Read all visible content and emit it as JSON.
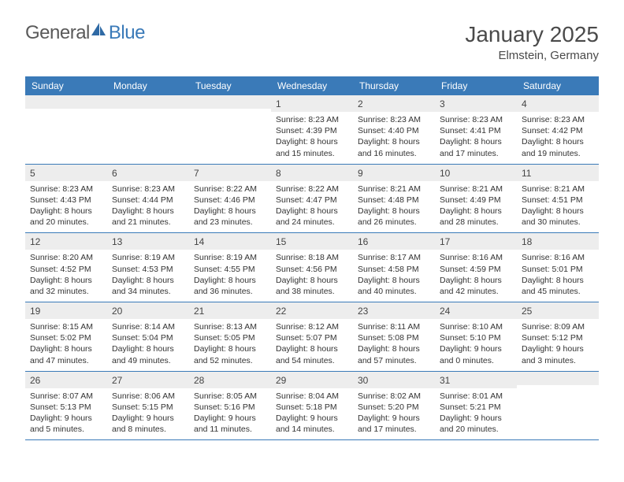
{
  "logo": {
    "word1": "General",
    "word2": "Blue"
  },
  "title": "January 2025",
  "location": "Elmstein, Germany",
  "colors": {
    "header_bg": "#3a7ab8",
    "header_text": "#ffffff",
    "daynum_bg": "#ededed",
    "border": "#3a7ab8",
    "logo_gray": "#5a5a5a",
    "logo_blue": "#3a7ab8"
  },
  "day_headers": [
    "Sunday",
    "Monday",
    "Tuesday",
    "Wednesday",
    "Thursday",
    "Friday",
    "Saturday"
  ],
  "weeks": [
    [
      {
        "n": "",
        "sunrise": "",
        "sunset": "",
        "daylight": ""
      },
      {
        "n": "",
        "sunrise": "",
        "sunset": "",
        "daylight": ""
      },
      {
        "n": "",
        "sunrise": "",
        "sunset": "",
        "daylight": ""
      },
      {
        "n": "1",
        "sunrise": "Sunrise: 8:23 AM",
        "sunset": "Sunset: 4:39 PM",
        "daylight": "Daylight: 8 hours and 15 minutes."
      },
      {
        "n": "2",
        "sunrise": "Sunrise: 8:23 AM",
        "sunset": "Sunset: 4:40 PM",
        "daylight": "Daylight: 8 hours and 16 minutes."
      },
      {
        "n": "3",
        "sunrise": "Sunrise: 8:23 AM",
        "sunset": "Sunset: 4:41 PM",
        "daylight": "Daylight: 8 hours and 17 minutes."
      },
      {
        "n": "4",
        "sunrise": "Sunrise: 8:23 AM",
        "sunset": "Sunset: 4:42 PM",
        "daylight": "Daylight: 8 hours and 19 minutes."
      }
    ],
    [
      {
        "n": "5",
        "sunrise": "Sunrise: 8:23 AM",
        "sunset": "Sunset: 4:43 PM",
        "daylight": "Daylight: 8 hours and 20 minutes."
      },
      {
        "n": "6",
        "sunrise": "Sunrise: 8:23 AM",
        "sunset": "Sunset: 4:44 PM",
        "daylight": "Daylight: 8 hours and 21 minutes."
      },
      {
        "n": "7",
        "sunrise": "Sunrise: 8:22 AM",
        "sunset": "Sunset: 4:46 PM",
        "daylight": "Daylight: 8 hours and 23 minutes."
      },
      {
        "n": "8",
        "sunrise": "Sunrise: 8:22 AM",
        "sunset": "Sunset: 4:47 PM",
        "daylight": "Daylight: 8 hours and 24 minutes."
      },
      {
        "n": "9",
        "sunrise": "Sunrise: 8:21 AM",
        "sunset": "Sunset: 4:48 PM",
        "daylight": "Daylight: 8 hours and 26 minutes."
      },
      {
        "n": "10",
        "sunrise": "Sunrise: 8:21 AM",
        "sunset": "Sunset: 4:49 PM",
        "daylight": "Daylight: 8 hours and 28 minutes."
      },
      {
        "n": "11",
        "sunrise": "Sunrise: 8:21 AM",
        "sunset": "Sunset: 4:51 PM",
        "daylight": "Daylight: 8 hours and 30 minutes."
      }
    ],
    [
      {
        "n": "12",
        "sunrise": "Sunrise: 8:20 AM",
        "sunset": "Sunset: 4:52 PM",
        "daylight": "Daylight: 8 hours and 32 minutes."
      },
      {
        "n": "13",
        "sunrise": "Sunrise: 8:19 AM",
        "sunset": "Sunset: 4:53 PM",
        "daylight": "Daylight: 8 hours and 34 minutes."
      },
      {
        "n": "14",
        "sunrise": "Sunrise: 8:19 AM",
        "sunset": "Sunset: 4:55 PM",
        "daylight": "Daylight: 8 hours and 36 minutes."
      },
      {
        "n": "15",
        "sunrise": "Sunrise: 8:18 AM",
        "sunset": "Sunset: 4:56 PM",
        "daylight": "Daylight: 8 hours and 38 minutes."
      },
      {
        "n": "16",
        "sunrise": "Sunrise: 8:17 AM",
        "sunset": "Sunset: 4:58 PM",
        "daylight": "Daylight: 8 hours and 40 minutes."
      },
      {
        "n": "17",
        "sunrise": "Sunrise: 8:16 AM",
        "sunset": "Sunset: 4:59 PM",
        "daylight": "Daylight: 8 hours and 42 minutes."
      },
      {
        "n": "18",
        "sunrise": "Sunrise: 8:16 AM",
        "sunset": "Sunset: 5:01 PM",
        "daylight": "Daylight: 8 hours and 45 minutes."
      }
    ],
    [
      {
        "n": "19",
        "sunrise": "Sunrise: 8:15 AM",
        "sunset": "Sunset: 5:02 PM",
        "daylight": "Daylight: 8 hours and 47 minutes."
      },
      {
        "n": "20",
        "sunrise": "Sunrise: 8:14 AM",
        "sunset": "Sunset: 5:04 PM",
        "daylight": "Daylight: 8 hours and 49 minutes."
      },
      {
        "n": "21",
        "sunrise": "Sunrise: 8:13 AM",
        "sunset": "Sunset: 5:05 PM",
        "daylight": "Daylight: 8 hours and 52 minutes."
      },
      {
        "n": "22",
        "sunrise": "Sunrise: 8:12 AM",
        "sunset": "Sunset: 5:07 PM",
        "daylight": "Daylight: 8 hours and 54 minutes."
      },
      {
        "n": "23",
        "sunrise": "Sunrise: 8:11 AM",
        "sunset": "Sunset: 5:08 PM",
        "daylight": "Daylight: 8 hours and 57 minutes."
      },
      {
        "n": "24",
        "sunrise": "Sunrise: 8:10 AM",
        "sunset": "Sunset: 5:10 PM",
        "daylight": "Daylight: 9 hours and 0 minutes."
      },
      {
        "n": "25",
        "sunrise": "Sunrise: 8:09 AM",
        "sunset": "Sunset: 5:12 PM",
        "daylight": "Daylight: 9 hours and 3 minutes."
      }
    ],
    [
      {
        "n": "26",
        "sunrise": "Sunrise: 8:07 AM",
        "sunset": "Sunset: 5:13 PM",
        "daylight": "Daylight: 9 hours and 5 minutes."
      },
      {
        "n": "27",
        "sunrise": "Sunrise: 8:06 AM",
        "sunset": "Sunset: 5:15 PM",
        "daylight": "Daylight: 9 hours and 8 minutes."
      },
      {
        "n": "28",
        "sunrise": "Sunrise: 8:05 AM",
        "sunset": "Sunset: 5:16 PM",
        "daylight": "Daylight: 9 hours and 11 minutes."
      },
      {
        "n": "29",
        "sunrise": "Sunrise: 8:04 AM",
        "sunset": "Sunset: 5:18 PM",
        "daylight": "Daylight: 9 hours and 14 minutes."
      },
      {
        "n": "30",
        "sunrise": "Sunrise: 8:02 AM",
        "sunset": "Sunset: 5:20 PM",
        "daylight": "Daylight: 9 hours and 17 minutes."
      },
      {
        "n": "31",
        "sunrise": "Sunrise: 8:01 AM",
        "sunset": "Sunset: 5:21 PM",
        "daylight": "Daylight: 9 hours and 20 minutes."
      },
      {
        "n": "",
        "sunrise": "",
        "sunset": "",
        "daylight": ""
      }
    ]
  ]
}
